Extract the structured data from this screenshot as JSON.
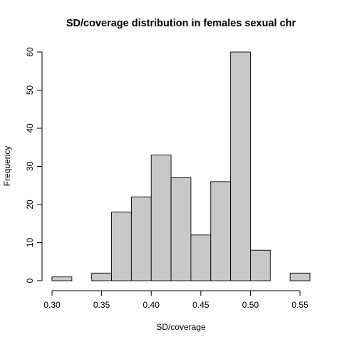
{
  "chart_data": {
    "type": "bar",
    "subtype": "histogram",
    "title": "SD/coverage distribution in females sexual chr",
    "xlabel": "SD/coverage",
    "ylabel": "Frequency",
    "bin_edges": [
      0.3,
      0.32,
      0.34,
      0.36,
      0.38,
      0.4,
      0.42,
      0.44,
      0.46,
      0.48,
      0.5,
      0.52,
      0.54,
      0.56
    ],
    "values": [
      1,
      0,
      2,
      18,
      22,
      33,
      27,
      12,
      26,
      60,
      8,
      0,
      2
    ],
    "xlim": [
      0.3,
      0.56
    ],
    "ylim": [
      0,
      60
    ],
    "x_ticks": [
      0.3,
      0.35,
      0.4,
      0.45,
      0.5,
      0.55
    ],
    "x_tick_labels": [
      "0.30",
      "0.35",
      "0.40",
      "0.45",
      "0.50",
      "0.55"
    ],
    "y_ticks": [
      0,
      10,
      20,
      30,
      40,
      50,
      60
    ],
    "y_tick_labels": [
      "0",
      "10",
      "20",
      "30",
      "40",
      "50",
      "60"
    ],
    "bar_color": "#c8c8c8",
    "edge_color": "#000000",
    "grid": false,
    "legend": "none"
  }
}
